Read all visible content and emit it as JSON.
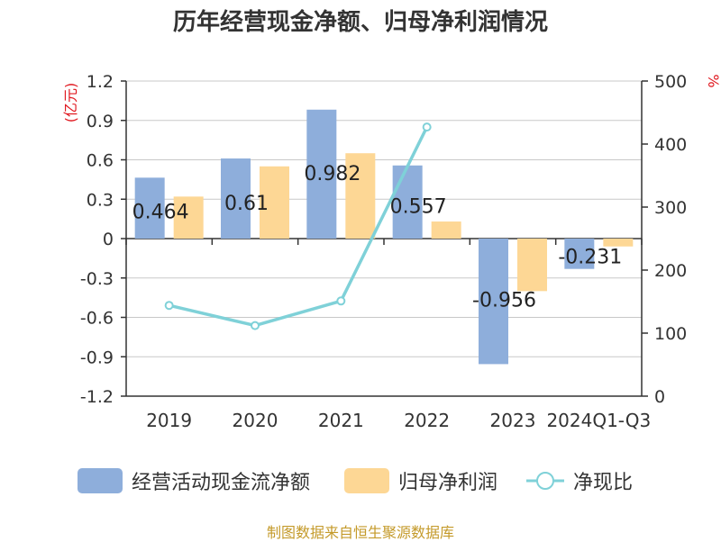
{
  "title": "历年经营现金净额、归母净利润情况",
  "left_unit": "(亿元)",
  "right_unit": "%",
  "source_note": "制图数据来自恒生聚源数据库",
  "colors": {
    "cash_flow": "#8eaedb",
    "net_profit": "#fdd795",
    "ratio_line": "#7fd1d8",
    "unit_red": "#e0181f",
    "axis": "#333333",
    "grid": "#c8c8c8",
    "text": "#333333",
    "source": "#c49a2a"
  },
  "legend": {
    "cash_flow_label": "经营活动现金流净额",
    "net_profit_label": "归母净利润",
    "ratio_label": "净现比"
  },
  "chart_data": {
    "type": "bar",
    "categories": [
      "2019",
      "2020",
      "2021",
      "2022",
      "2023",
      "2024Q1-Q3"
    ],
    "series": [
      {
        "name": "经营活动现金流净额",
        "type": "bar",
        "axis": "left",
        "values": [
          0.464,
          0.61,
          0.982,
          0.557,
          -0.956,
          -0.231
        ],
        "data_labels": [
          "0.464",
          "0.61",
          "0.982",
          "0.557",
          "-0.956",
          "-0.231"
        ]
      },
      {
        "name": "归母净利润",
        "type": "bar",
        "axis": "left",
        "values": [
          0.32,
          0.55,
          0.65,
          0.13,
          -0.4,
          -0.06
        ]
      },
      {
        "name": "净现比",
        "type": "line",
        "axis": "right",
        "values": [
          144,
          112,
          151,
          427,
          null,
          null
        ]
      }
    ],
    "y_left": {
      "min": -1.2,
      "max": 1.2,
      "ticks": [
        1.2,
        0.9,
        0.6,
        0.3,
        0,
        -0.3,
        -0.6,
        -0.9,
        -1.2
      ],
      "tick_labels": [
        "1.2",
        "0.9",
        "0.6",
        "0.3",
        "0",
        "-0.3",
        "-0.6",
        "-0.9",
        "-1.2"
      ]
    },
    "y_right": {
      "min": 0,
      "max": 500,
      "ticks": [
        500,
        400,
        300,
        200,
        100,
        0
      ],
      "tick_labels": [
        "500",
        "400",
        "300",
        "200",
        "100",
        "0"
      ]
    },
    "grid": true,
    "legend_position": "bottom"
  }
}
